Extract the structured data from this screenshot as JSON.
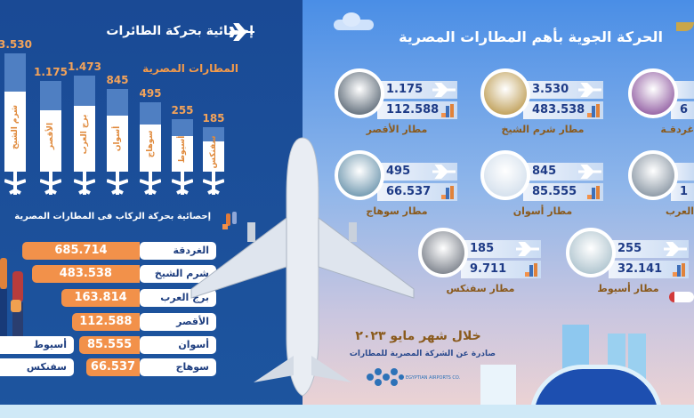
{
  "left": {
    "flights_title": "إحصائية بحركة الطائرات",
    "flights_subtitle": "المطارات المصرية",
    "passengers_title": "إحصائية بحركة الركاب فى المطارات المصرية",
    "extra_labels": [
      "أسيوط",
      "سفنكس"
    ]
  },
  "chart_data": [
    {
      "type": "bar",
      "title": "إحصائية بحركة الطائرات",
      "subtitle": "المطارات المصرية",
      "categories": [
        "شرم الشيخ",
        "الأقصر",
        "برج العرب",
        "أسوان",
        "سوهاج",
        "أسيوط",
        "سفنكس"
      ],
      "value_labels": [
        "3.530",
        "1.175",
        "1.473",
        "845",
        "495",
        "255",
        "185"
      ],
      "values": [
        3530,
        1175,
        1473,
        845,
        495,
        255,
        185
      ]
    },
    {
      "type": "bar",
      "orientation": "horizontal",
      "title": "إحصائية بحركة الركاب فى المطارات المصرية",
      "categories": [
        "الغردقة",
        "شرم الشيخ",
        "برج العرب",
        "الأقصر",
        "أسوان",
        "سوهاج"
      ],
      "value_labels": [
        "685.714",
        "483.538",
        "163.814",
        "112.588",
        "85.555",
        "66.537"
      ],
      "values": [
        685714,
        483538,
        163814,
        112588,
        85555,
        66537
      ]
    }
  ],
  "right": {
    "title": "الحركة الجوية بأهم المطارات المصرية",
    "airports": [
      {
        "name": "مطار الأقصر",
        "flights": "1.175",
        "passengers": "112.588",
        "color": "#3a4a5a"
      },
      {
        "name": "مطار شرم الشيخ",
        "flights": "3.530",
        "passengers": "483.538",
        "color": "#b0882f"
      },
      {
        "name": "غردقـة",
        "flights": "",
        "passengers": "6",
        "color": "#7a3a8e"
      },
      {
        "name": "مطار سوهاج",
        "flights": "495",
        "passengers": "66.537",
        "color": "#4d7f9c"
      },
      {
        "name": "مطار أسوان",
        "flights": "845",
        "passengers": "85.555",
        "color": "#c9d8e8"
      },
      {
        "name": "العرب",
        "flights": "",
        "passengers": "1",
        "color": "#6f7f8f"
      },
      {
        "name": "مطار سفنكس",
        "flights": "185",
        "passengers": "9.711",
        "color": "#5d6470"
      },
      {
        "name": "مطار أسيوط",
        "flights": "255",
        "passengers": "32.141",
        "color": "#9ab5c2"
      }
    ],
    "period": "خلال شهر مايو ٢٠٢٣",
    "source": "صادرة عن الشركة المصرية للمطارات",
    "logo_text": "EGYPTIAN AIRPORTS CO."
  },
  "colors": {
    "dark_blue": "#1a4a95",
    "orange": "#f2914a",
    "navy_text": "#1e3b86"
  }
}
